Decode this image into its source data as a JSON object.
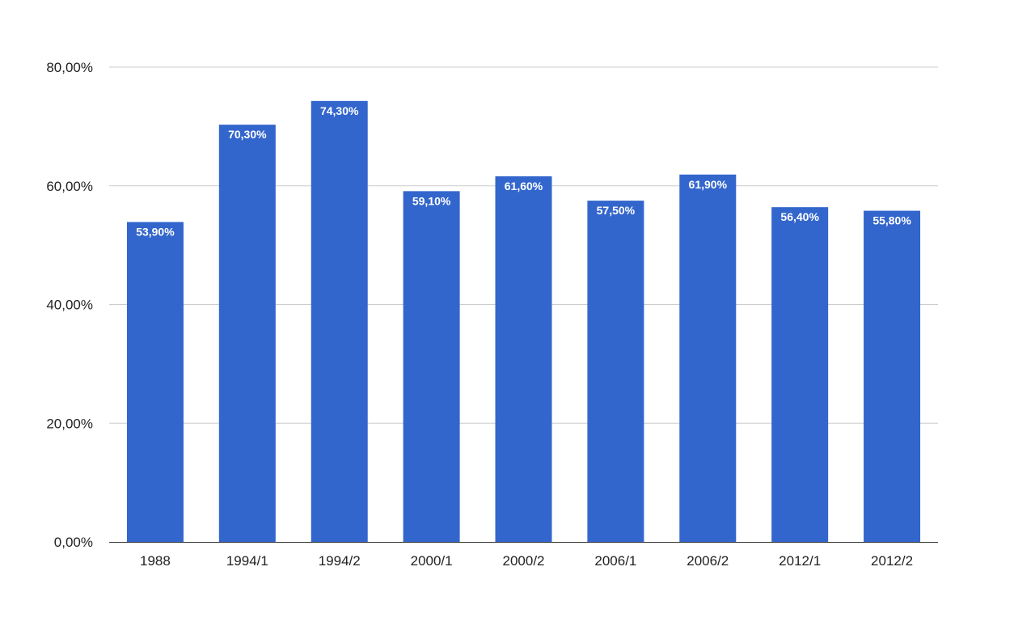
{
  "chart_data": {
    "type": "bar",
    "title": "",
    "xlabel": "",
    "ylabel": "",
    "categories": [
      "1988",
      "1994/1",
      "1994/2",
      "2000/1",
      "2000/2",
      "2006/1",
      "2006/2",
      "2012/1",
      "2012/2"
    ],
    "values": [
      53.9,
      70.3,
      74.3,
      59.1,
      61.6,
      57.5,
      61.9,
      56.4,
      55.8
    ],
    "data_labels": [
      "53,90%",
      "70,30%",
      "74,30%",
      "59,10%",
      "61,60%",
      "57,50%",
      "61,90%",
      "56,40%",
      "55,80%"
    ],
    "ylim": [
      0,
      80
    ],
    "yticks": [
      0,
      20,
      40,
      60,
      80
    ],
    "ytick_labels": [
      "0,00%",
      "20,00%",
      "40,00%",
      "60,00%",
      "80,00%"
    ],
    "grid": true,
    "legend": "none",
    "bar_color": "#3366cc"
  }
}
